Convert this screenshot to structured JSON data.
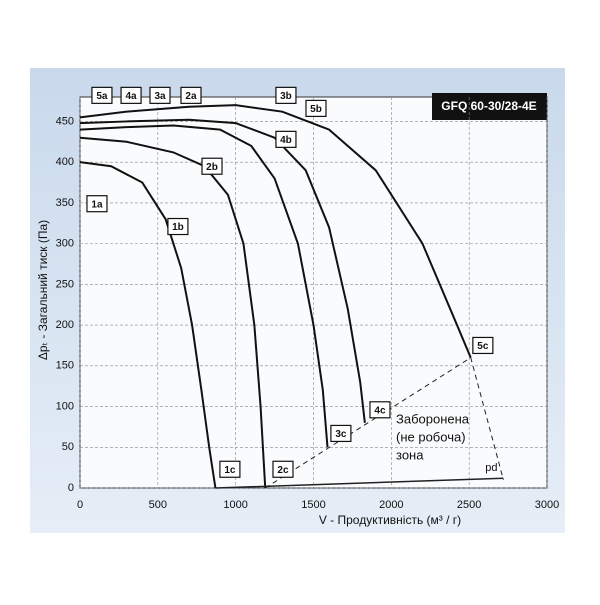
{
  "chart_data": {
    "type": "line",
    "title": "GFQ 60-30/28-4E",
    "x_label": "V - Продуктивність  (м³ / г)",
    "y_label": "Δpₜ - Загальний тиск (Па)",
    "xlim": [
      0,
      3000
    ],
    "ylim": [
      0,
      480
    ],
    "xticks": [
      0,
      500,
      1000,
      1500,
      2000,
      2500,
      3000
    ],
    "yticks": [
      0,
      50,
      100,
      150,
      200,
      250,
      300,
      350,
      400,
      450
    ],
    "grid": true,
    "series": [
      {
        "name": "1",
        "color": "#111",
        "x": [
          0,
          200,
          400,
          550,
          650,
          720,
          780,
          830,
          870
        ],
        "values": [
          400,
          395,
          375,
          330,
          270,
          200,
          120,
          50,
          0
        ]
      },
      {
        "name": "2",
        "color": "#111",
        "x": [
          0,
          300,
          600,
          800,
          950,
          1050,
          1120,
          1160,
          1190
        ],
        "values": [
          430,
          425,
          412,
          395,
          360,
          300,
          200,
          100,
          0
        ]
      },
      {
        "name": "3",
        "color": "#111",
        "x": [
          0,
          300,
          600,
          900,
          1100,
          1250,
          1400,
          1500,
          1560,
          1590
        ],
        "values": [
          440,
          443,
          445,
          440,
          420,
          380,
          300,
          200,
          120,
          50
        ]
      },
      {
        "name": "4",
        "color": "#111",
        "x": [
          0,
          300,
          700,
          1000,
          1250,
          1450,
          1600,
          1720,
          1800,
          1830
        ],
        "values": [
          448,
          450,
          452,
          448,
          430,
          390,
          320,
          220,
          130,
          80
        ]
      },
      {
        "name": "5",
        "color": "#111",
        "x": [
          0,
          300,
          700,
          1000,
          1300,
          1600,
          1900,
          2200,
          2400,
          2510
        ],
        "values": [
          455,
          462,
          468,
          470,
          462,
          440,
          390,
          300,
          210,
          160
        ]
      }
    ],
    "limit_line": {
      "x": [
        1190,
        2510,
        2720
      ],
      "values": [
        0,
        160,
        10
      ]
    },
    "pd_line": {
      "label": "pd",
      "x": [
        870,
        2720
      ],
      "values": [
        0,
        12
      ]
    },
    "zone_text": [
      "Заборонена",
      "(не робоча)",
      "зона"
    ],
    "labels": [
      {
        "text": "5a",
        "x": 141,
        "y": 482
      },
      {
        "text": "4a",
        "x": 328,
        "y": 482
      },
      {
        "text": "3a",
        "x": 514,
        "y": 482
      },
      {
        "text": "2a",
        "x": 713,
        "y": 482
      },
      {
        "text": "3b",
        "x": 1323,
        "y": 482
      },
      {
        "text": "5b",
        "x": 1516,
        "y": 466
      },
      {
        "text": "4b",
        "x": 1323,
        "y": 428
      },
      {
        "text": "2b",
        "x": 848,
        "y": 395
      },
      {
        "text": "1a",
        "x": 109,
        "y": 349
      },
      {
        "text": "1b",
        "x": 629,
        "y": 321
      },
      {
        "text": "5c",
        "x": 2588,
        "y": 175
      },
      {
        "text": "4c",
        "x": 1927,
        "y": 96
      },
      {
        "text": "3c",
        "x": 1676,
        "y": 67
      },
      {
        "text": "2c",
        "x": 1304,
        "y": 23
      },
      {
        "text": "1c",
        "x": 963,
        "y": 23
      }
    ]
  }
}
